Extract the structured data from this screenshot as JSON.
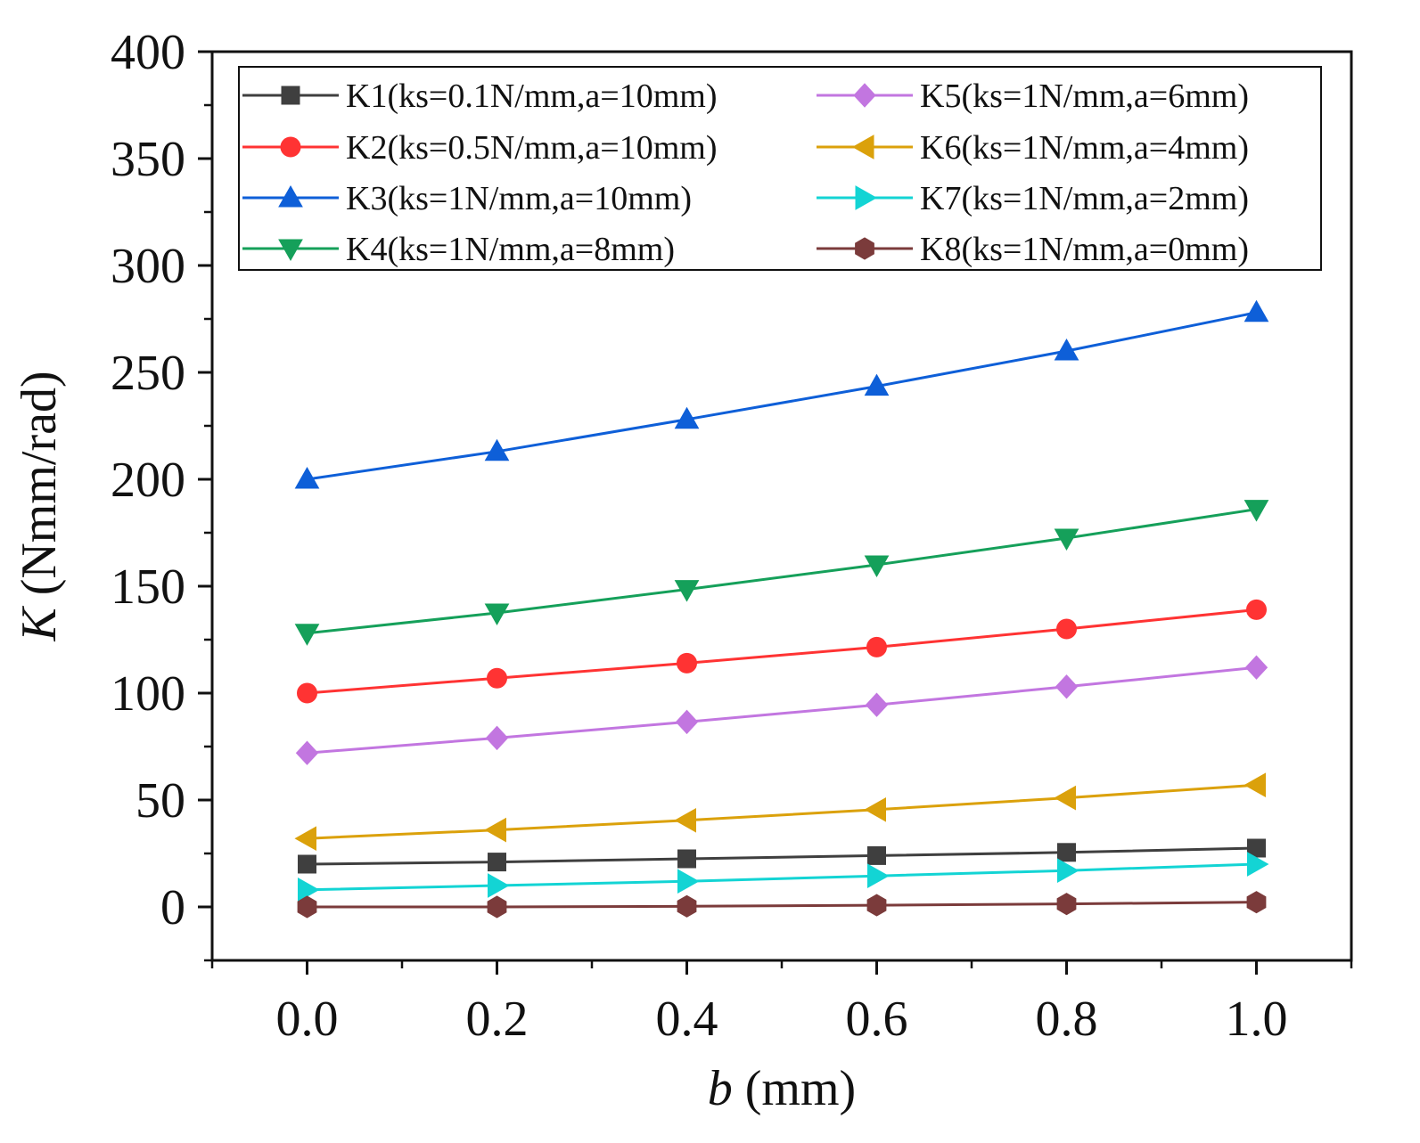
{
  "chart_data": {
    "type": "line",
    "xlabel_var": "b",
    "xlabel_unit": " (mm)",
    "ylabel_var": "K",
    "ylabel_unit": " (Nmm/rad)",
    "xlim": [
      -0.1,
      1.1
    ],
    "ylim": [
      -25,
      400
    ],
    "xticks": [
      0.0,
      0.2,
      0.4,
      0.6,
      0.8,
      1.0
    ],
    "xtick_labels": [
      "0.0",
      "0.2",
      "0.4",
      "0.6",
      "0.8",
      "1.0"
    ],
    "yticks": [
      0,
      50,
      100,
      150,
      200,
      250,
      300,
      350,
      400
    ],
    "ytick_labels": [
      "0",
      "50",
      "100",
      "150",
      "200",
      "250",
      "300",
      "350",
      "400"
    ],
    "x": [
      0.0,
      0.2,
      0.4,
      0.6,
      0.8,
      1.0
    ],
    "legend_position": "top",
    "series": [
      {
        "name": "K1(ks=0.1N/mm,a=10mm)",
        "color": "#3f3f3f",
        "marker": "square",
        "values": [
          20,
          21,
          22.5,
          24,
          25.5,
          27.5
        ]
      },
      {
        "name": "K2(ks=0.5N/mm,a=10mm)",
        "color": "#ff3333",
        "marker": "circle",
        "values": [
          100,
          107,
          114,
          121.5,
          130,
          139
        ]
      },
      {
        "name": "K3(ks=1N/mm,a=10mm)",
        "color": "#0e5fd8",
        "marker": "triangle-up",
        "values": [
          200,
          213,
          228,
          243.5,
          260,
          278
        ]
      },
      {
        "name": "K4(ks=1N/mm,a=8mm)",
        "color": "#15a05a",
        "marker": "triangle-down",
        "values": [
          128,
          137.5,
          148.5,
          160,
          172.5,
          186
        ]
      },
      {
        "name": "K5(ks=1N/mm,a=6mm)",
        "color": "#c276e0",
        "marker": "diamond",
        "values": [
          72,
          79,
          86.5,
          94.5,
          103,
          112
        ]
      },
      {
        "name": "K6(ks=1N/mm,a=4mm)",
        "color": "#dba10b",
        "marker": "triangle-left",
        "values": [
          32,
          36,
          40.5,
          45.5,
          51,
          57
        ]
      },
      {
        "name": "K7(ks=1N/mm,a=2mm)",
        "color": "#13d4d4",
        "marker": "triangle-right",
        "values": [
          8,
          10,
          12,
          14.5,
          17,
          20
        ]
      },
      {
        "name": "K8(ks=1N/mm,a=0mm)",
        "color": "#7b3b3b",
        "marker": "hexagon",
        "values": [
          0,
          0,
          0.3,
          0.8,
          1.4,
          2.2
        ]
      }
    ]
  }
}
